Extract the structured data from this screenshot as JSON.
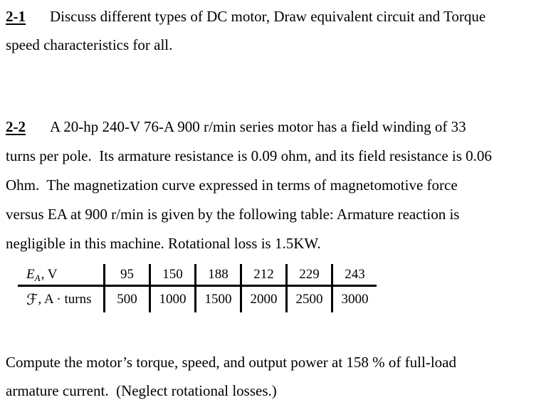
{
  "page": {
    "background": "#ffffff",
    "text_color": "#000000"
  },
  "problem_2_1": {
    "label": "2-1",
    "lines": [
      "Discuss different types of DC motor, Draw equivalent circuit and Torque",
      "speed characteristics for all."
    ]
  },
  "problem_2_2": {
    "label": "2-2",
    "lines": [
      "A 20-hp 240-V 76-A 900 r/min series motor has a field winding of 33",
      "turns per pole.  Its armature resistance is 0.09 ohm, and its field resistance is 0.06",
      "Ohm.  The magnetization curve expressed in terms of magnetomotive force",
      "versus EA at 900 r/min is given by the following table: Armature reaction is",
      "negligible in this machine. Rotational loss is 1.5KW."
    ]
  },
  "magnetization_table": {
    "row_ea": {
      "symbol": "E",
      "subscript": "A",
      "suffix": ", V",
      "values": [
        "95",
        "150",
        "188",
        "212",
        "229",
        "243"
      ]
    },
    "row_mmf": {
      "symbol": "ℱ",
      "suffix": ", A · turns",
      "values": [
        "500",
        "1000",
        "1500",
        "2000",
        "2500",
        "3000"
      ]
    }
  },
  "closing": {
    "lines": [
      "Compute the motor’s torque, speed, and output power at 158 % of full-load",
      "armature current.  (Neglect rotational losses.)"
    ]
  }
}
